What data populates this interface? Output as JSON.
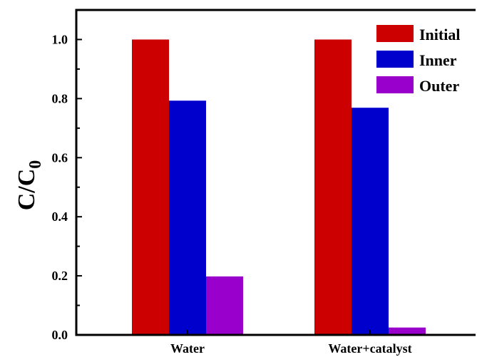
{
  "chart_data": {
    "type": "bar",
    "categories": [
      "Water",
      "Water+catalyst"
    ],
    "series": [
      {
        "name": "Initial",
        "values": [
          1.0,
          1.0
        ],
        "color": "#cc0000"
      },
      {
        "name": "Inner",
        "values": [
          0.793,
          0.769
        ],
        "color": "#0000cc"
      },
      {
        "name": "Outer",
        "values": [
          0.198,
          0.025
        ],
        "color": "#9900cc"
      }
    ],
    "ylabel": "C/C",
    "ylabel_subscript": "0",
    "ylim": [
      0,
      1.1
    ],
    "yticks": [
      "0.0",
      "0.2",
      "0.4",
      "0.6",
      "0.8",
      "1.0"
    ],
    "grid": false,
    "legend_position": "top-right"
  }
}
